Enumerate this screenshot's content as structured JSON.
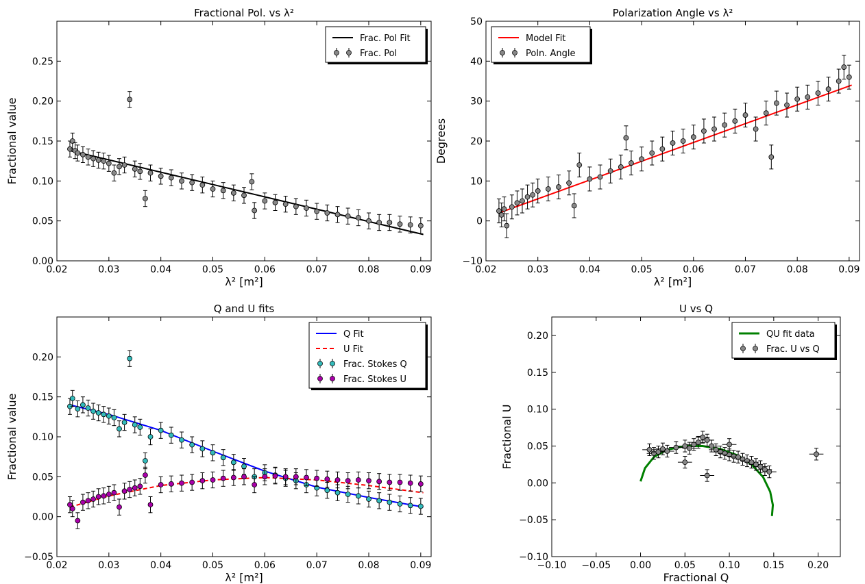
{
  "chart_data": [
    {
      "type": "scatter",
      "title": "Fractional Pol. vs λ²",
      "xlabel": "λ² [m²]",
      "ylabel": "Fractional value",
      "xlim": [
        0.02,
        0.092
      ],
      "ylim": [
        0.0,
        0.3
      ],
      "xticks": [
        "0.02",
        "0.03",
        "0.04",
        "0.05",
        "0.06",
        "0.07",
        "0.08",
        "0.09"
      ],
      "yticks": [
        "0.00",
        "0.05",
        "0.10",
        "0.15",
        "0.20",
        "0.25"
      ],
      "legend_position": "top-right",
      "series": [
        {
          "name": "Frac. Pol Fit",
          "kind": "line",
          "color": "#000000",
          "x": [
            0.0225,
            0.0905
          ],
          "y": [
            0.138,
            0.033
          ]
        },
        {
          "name": "Frac. Pol",
          "kind": "errorbar",
          "color": "#888888",
          "x": [
            0.0225,
            0.023,
            0.0235,
            0.024,
            0.025,
            0.026,
            0.027,
            0.028,
            0.029,
            0.03,
            0.031,
            0.032,
            0.033,
            0.034,
            0.035,
            0.036,
            0.037,
            0.038,
            0.04,
            0.042,
            0.044,
            0.046,
            0.048,
            0.05,
            0.052,
            0.054,
            0.056,
            0.0575,
            0.058,
            0.06,
            0.062,
            0.064,
            0.066,
            0.068,
            0.07,
            0.072,
            0.074,
            0.076,
            0.078,
            0.08,
            0.082,
            0.084,
            0.086,
            0.088,
            0.09
          ],
          "y": [
            0.14,
            0.15,
            0.138,
            0.135,
            0.133,
            0.13,
            0.128,
            0.126,
            0.125,
            0.122,
            0.11,
            0.118,
            0.12,
            0.202,
            0.115,
            0.112,
            0.078,
            0.11,
            0.106,
            0.104,
            0.1,
            0.098,
            0.095,
            0.09,
            0.088,
            0.085,
            0.082,
            0.099,
            0.063,
            0.075,
            0.073,
            0.071,
            0.068,
            0.066,
            0.062,
            0.06,
            0.058,
            0.056,
            0.054,
            0.05,
            0.048,
            0.048,
            0.046,
            0.045,
            0.044
          ],
          "err": 0.01
        }
      ]
    },
    {
      "type": "scatter",
      "title": "Polarization Angle vs λ²",
      "xlabel": "λ² [m²]",
      "ylabel": "Degrees",
      "xlim": [
        0.02,
        0.092
      ],
      "ylim": [
        -10,
        50
      ],
      "xticks": [
        "0.02",
        "0.03",
        "0.04",
        "0.05",
        "0.06",
        "0.07",
        "0.08",
        "0.09"
      ],
      "yticks": [
        "−10",
        "0",
        "10",
        "20",
        "30",
        "40",
        "50"
      ],
      "legend_position": "top-left",
      "series": [
        {
          "name": "Model Fit",
          "kind": "line",
          "color": "#ff0000",
          "x": [
            0.0225,
            0.0905
          ],
          "y": [
            2.0,
            34.0
          ]
        },
        {
          "name": "Poln. Angle",
          "kind": "errorbar",
          "color": "#888888",
          "x": [
            0.0225,
            0.023,
            0.0235,
            0.024,
            0.025,
            0.026,
            0.027,
            0.028,
            0.029,
            0.03,
            0.032,
            0.034,
            0.036,
            0.037,
            0.038,
            0.04,
            0.042,
            0.044,
            0.046,
            0.047,
            0.048,
            0.05,
            0.052,
            0.054,
            0.056,
            0.058,
            0.06,
            0.062,
            0.064,
            0.066,
            0.068,
            0.07,
            0.072,
            0.074,
            0.075,
            0.076,
            0.078,
            0.08,
            0.082,
            0.084,
            0.086,
            0.088,
            0.089,
            0.09
          ],
          "y": [
            2.5,
            1.5,
            3.0,
            -1.2,
            3.5,
            4.5,
            5.0,
            6.0,
            6.5,
            7.5,
            8.0,
            8.5,
            9.5,
            3.8,
            14.0,
            10.5,
            11.0,
            12.5,
            13.5,
            20.8,
            14.5,
            15.5,
            17.0,
            18.0,
            19.5,
            20.0,
            21.0,
            22.5,
            23.0,
            24.0,
            25.0,
            26.5,
            23.0,
            27.0,
            16.0,
            29.5,
            29.0,
            30.5,
            31.0,
            32.0,
            33.0,
            35.0,
            38.5,
            36.0
          ],
          "err": 3.0
        }
      ]
    },
    {
      "type": "scatter",
      "title": "Q and U fits",
      "xlabel": "λ² [m²]",
      "ylabel": "Fractional value",
      "xlim": [
        0.02,
        0.092
      ],
      "ylim": [
        -0.05,
        0.25
      ],
      "xticks": [
        "0.02",
        "0.03",
        "0.04",
        "0.05",
        "0.06",
        "0.07",
        "0.08",
        "0.09"
      ],
      "yticks": [
        "−0.05",
        "0.00",
        "0.05",
        "0.10",
        "0.15",
        "0.20"
      ],
      "legend_position": "top-right",
      "series": [
        {
          "name": "Q Fit",
          "kind": "line",
          "color": "#0000ff",
          "x": [
            0.0225,
            0.03,
            0.04,
            0.05,
            0.06,
            0.07,
            0.08,
            0.0905
          ],
          "y": [
            0.14,
            0.128,
            0.108,
            0.082,
            0.057,
            0.037,
            0.024,
            0.012
          ]
        },
        {
          "name": "U Fit",
          "kind": "dashed",
          "color": "#ff0000",
          "x": [
            0.0225,
            0.03,
            0.04,
            0.05,
            0.06,
            0.07,
            0.08,
            0.0905
          ],
          "y": [
            0.012,
            0.026,
            0.039,
            0.046,
            0.049,
            0.046,
            0.039,
            0.03
          ]
        },
        {
          "name": "Frac. Stokes Q",
          "kind": "errorbar",
          "color": "#33bbbb",
          "x": [
            0.0225,
            0.023,
            0.024,
            0.025,
            0.026,
            0.027,
            0.028,
            0.029,
            0.03,
            0.031,
            0.032,
            0.033,
            0.034,
            0.035,
            0.036,
            0.037,
            0.038,
            0.04,
            0.042,
            0.044,
            0.046,
            0.048,
            0.05,
            0.052,
            0.054,
            0.056,
            0.058,
            0.06,
            0.062,
            0.064,
            0.066,
            0.068,
            0.07,
            0.072,
            0.074,
            0.076,
            0.078,
            0.08,
            0.082,
            0.084,
            0.086,
            0.088,
            0.09
          ],
          "y": [
            0.138,
            0.148,
            0.135,
            0.14,
            0.136,
            0.132,
            0.13,
            0.128,
            0.126,
            0.124,
            0.11,
            0.118,
            0.198,
            0.115,
            0.112,
            0.07,
            0.1,
            0.108,
            0.102,
            0.096,
            0.09,
            0.085,
            0.08,
            0.074,
            0.068,
            0.063,
            0.05,
            0.055,
            0.052,
            0.048,
            0.045,
            0.04,
            0.036,
            0.033,
            0.03,
            0.028,
            0.026,
            0.022,
            0.02,
            0.018,
            0.016,
            0.014,
            0.013
          ],
          "err": 0.01
        },
        {
          "name": "Frac. Stokes U",
          "kind": "errorbar",
          "color": "#aa00aa",
          "x": [
            0.0225,
            0.023,
            0.024,
            0.025,
            0.026,
            0.027,
            0.028,
            0.029,
            0.03,
            0.031,
            0.032,
            0.033,
            0.034,
            0.035,
            0.036,
            0.037,
            0.038,
            0.04,
            0.042,
            0.044,
            0.046,
            0.048,
            0.05,
            0.052,
            0.054,
            0.056,
            0.058,
            0.06,
            0.062,
            0.064,
            0.066,
            0.068,
            0.07,
            0.072,
            0.074,
            0.076,
            0.078,
            0.08,
            0.082,
            0.084,
            0.086,
            0.088,
            0.09
          ],
          "y": [
            0.015,
            0.01,
            -0.005,
            0.018,
            0.02,
            0.022,
            0.025,
            0.026,
            0.028,
            0.03,
            0.012,
            0.032,
            0.034,
            0.036,
            0.038,
            0.052,
            0.015,
            0.04,
            0.041,
            0.042,
            0.043,
            0.045,
            0.046,
            0.048,
            0.049,
            0.05,
            0.04,
            0.05,
            0.051,
            0.05,
            0.05,
            0.049,
            0.048,
            0.047,
            0.046,
            0.045,
            0.046,
            0.045,
            0.044,
            0.043,
            0.043,
            0.042,
            0.041
          ],
          "err": 0.01
        }
      ]
    },
    {
      "type": "scatter",
      "title": "U vs Q",
      "xlabel": "Fractional Q",
      "ylabel": "Fractional U",
      "xlim": [
        -0.1,
        0.225
      ],
      "ylim": [
        -0.1,
        0.225
      ],
      "xticks": [
        "−0.10",
        "−0.05",
        "0.00",
        "0.05",
        "0.10",
        "0.15",
        "0.20"
      ],
      "yticks": [
        "−0.10",
        "−0.05",
        "0.00",
        "0.05",
        "0.10",
        "0.15",
        "0.20"
      ],
      "legend_position": "top-right",
      "series": [
        {
          "name": "QU fit data",
          "kind": "line",
          "color": "#008000",
          "x": [
            0.0,
            0.005,
            0.015,
            0.03,
            0.05,
            0.07,
            0.09,
            0.11,
            0.125,
            0.138,
            0.146,
            0.149,
            0.148
          ],
          "y": [
            0.002,
            0.02,
            0.035,
            0.045,
            0.05,
            0.05,
            0.046,
            0.037,
            0.025,
            0.008,
            -0.012,
            -0.03,
            -0.045
          ]
        },
        {
          "name": "Frac. U vs Q",
          "kind": "errorbar2d",
          "color": "#888888",
          "x": [
            0.01,
            0.015,
            0.02,
            0.025,
            0.03,
            0.04,
            0.05,
            0.055,
            0.06,
            0.065,
            0.07,
            0.075,
            0.08,
            0.085,
            0.09,
            0.095,
            0.1,
            0.105,
            0.11,
            0.115,
            0.12,
            0.125,
            0.13,
            0.135,
            0.14,
            0.145,
            0.05,
            0.075,
            0.198,
            0.1
          ],
          "y": [
            0.045,
            0.04,
            0.042,
            0.046,
            0.043,
            0.048,
            0.05,
            0.047,
            0.052,
            0.055,
            0.062,
            0.058,
            0.05,
            0.045,
            0.042,
            0.04,
            0.038,
            0.036,
            0.035,
            0.032,
            0.03,
            0.028,
            0.025,
            0.022,
            0.018,
            0.015,
            0.028,
            0.01,
            0.039,
            0.052
          ],
          "err": 0.008
        }
      ]
    }
  ]
}
